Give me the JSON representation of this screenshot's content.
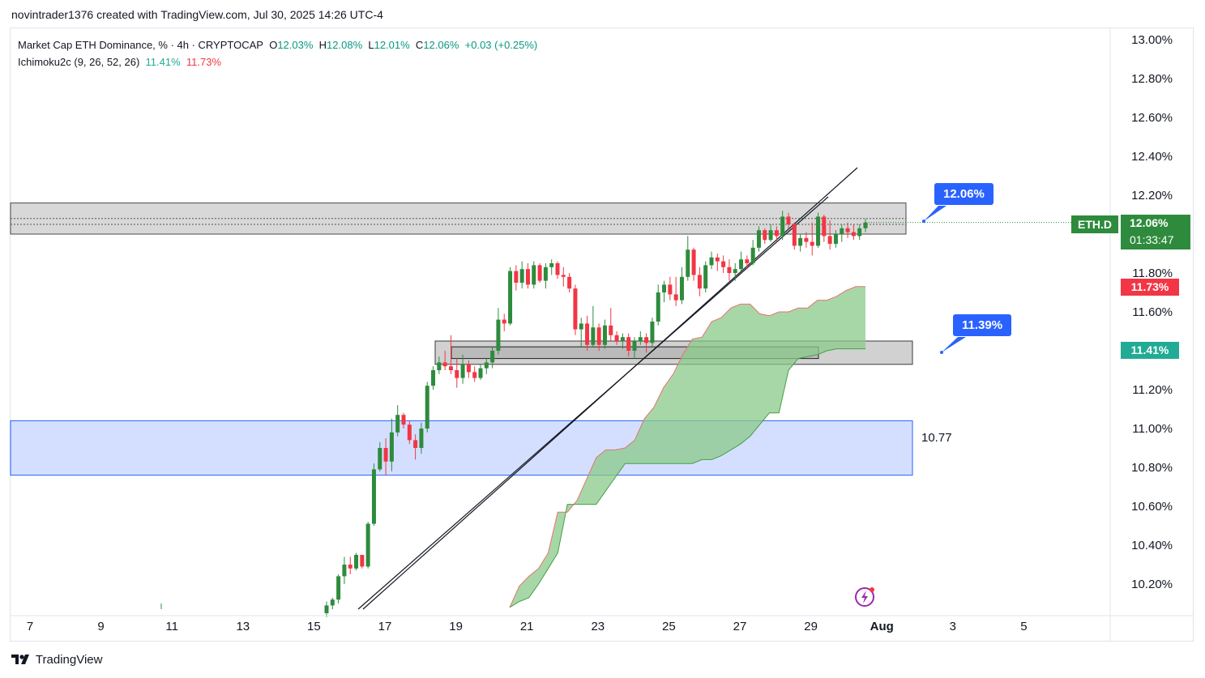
{
  "credit": "novintrader1376 created with TradingView.com, Jul 30, 2025 14:26 UTC-4",
  "legend": {
    "title": "Market Cap ETH Dominance, % · 4h · CRYPTOCAP",
    "o_label": "O",
    "o_value": "12.03%",
    "h_label": "H",
    "h_value": "12.08%",
    "l_label": "L",
    "l_value": "12.01%",
    "c_label": "C",
    "c_value": "12.06%",
    "change": "+0.03 (+0.25%)",
    "indicator": "Ichimoku2c (9, 26, 52, 26)",
    "ind_value1": "11.41%",
    "ind_value2": "11.73%"
  },
  "callouts": {
    "upper": "12.06%",
    "lower": "11.39%"
  },
  "zone_label": "10.77",
  "tags": {
    "symbol": "ETH.D",
    "current_price": "12.06%",
    "countdown": "01:33:47",
    "red_level": "11.73%",
    "green_level": "11.41%"
  },
  "brand": {
    "logo": "tradingview-logo",
    "name": "TradingView"
  },
  "colors": {
    "up": "#089981",
    "down": "#f23645",
    "cloud": "#8bc98a",
    "zone": "#2962ff",
    "callout": "#2962ff"
  },
  "chart_data": {
    "type": "candlestick",
    "title": "Market Cap ETH Dominance",
    "timeframe": "4h",
    "x_ticks": [
      "7",
      "9",
      "11",
      "13",
      "15",
      "17",
      "19",
      "21",
      "23",
      "25",
      "27",
      "29",
      "Aug",
      "3",
      "5"
    ],
    "y_ticks": [
      "10.20%",
      "10.40%",
      "10.60%",
      "10.80%",
      "11.00%",
      "11.20%",
      "11.40%",
      "11.60%",
      "11.80%",
      "12.00%",
      "12.20%",
      "12.40%",
      "12.60%",
      "12.80%",
      "13.00%"
    ],
    "ylim": [
      10.07,
      13.02
    ],
    "xlim_days": [
      6.5,
      12.4
    ],
    "candles": [
      {
        "o": 10.05,
        "h": 10.11,
        "l": 10.03,
        "c": 10.09
      },
      {
        "o": 10.09,
        "h": 10.13,
        "l": 10.07,
        "c": 10.12
      },
      {
        "o": 10.12,
        "h": 10.25,
        "l": 10.1,
        "c": 10.24
      },
      {
        "o": 10.24,
        "h": 10.34,
        "l": 10.2,
        "c": 10.3
      },
      {
        "o": 10.3,
        "h": 10.34,
        "l": 10.25,
        "c": 10.28
      },
      {
        "o": 10.28,
        "h": 10.36,
        "l": 10.27,
        "c": 10.35
      },
      {
        "o": 10.35,
        "h": 10.35,
        "l": 10.28,
        "c": 10.29
      },
      {
        "o": 10.29,
        "h": 10.52,
        "l": 10.28,
        "c": 10.51
      },
      {
        "o": 10.51,
        "h": 10.82,
        "l": 10.5,
        "c": 10.79
      },
      {
        "o": 10.79,
        "h": 10.93,
        "l": 10.78,
        "c": 10.9
      },
      {
        "o": 10.9,
        "h": 10.95,
        "l": 10.76,
        "c": 10.83
      },
      {
        "o": 10.83,
        "h": 11.05,
        "l": 10.78,
        "c": 10.98
      },
      {
        "o": 10.98,
        "h": 11.12,
        "l": 10.96,
        "c": 11.07
      },
      {
        "o": 11.07,
        "h": 11.08,
        "l": 11.0,
        "c": 11.02
      },
      {
        "o": 11.02,
        "h": 11.04,
        "l": 10.92,
        "c": 10.94
      },
      {
        "o": 10.94,
        "h": 10.97,
        "l": 10.84,
        "c": 10.9
      },
      {
        "o": 10.9,
        "h": 11.03,
        "l": 10.87,
        "c": 11.0
      },
      {
        "o": 11.0,
        "h": 11.24,
        "l": 10.98,
        "c": 11.22
      },
      {
        "o": 11.22,
        "h": 11.32,
        "l": 11.2,
        "c": 11.3
      },
      {
        "o": 11.3,
        "h": 11.37,
        "l": 11.28,
        "c": 11.34
      },
      {
        "o": 11.34,
        "h": 11.4,
        "l": 11.3,
        "c": 11.32
      },
      {
        "o": 11.32,
        "h": 11.48,
        "l": 11.28,
        "c": 11.3
      },
      {
        "o": 11.3,
        "h": 11.36,
        "l": 11.21,
        "c": 11.26
      },
      {
        "o": 11.26,
        "h": 11.38,
        "l": 11.23,
        "c": 11.33
      },
      {
        "o": 11.33,
        "h": 11.35,
        "l": 11.26,
        "c": 11.29
      },
      {
        "o": 11.29,
        "h": 11.32,
        "l": 11.24,
        "c": 11.26
      },
      {
        "o": 11.26,
        "h": 11.33,
        "l": 11.25,
        "c": 11.31
      },
      {
        "o": 11.31,
        "h": 11.36,
        "l": 11.28,
        "c": 11.34
      },
      {
        "o": 11.34,
        "h": 11.42,
        "l": 11.31,
        "c": 11.4
      },
      {
        "o": 11.4,
        "h": 11.62,
        "l": 11.38,
        "c": 11.56
      },
      {
        "o": 11.56,
        "h": 11.59,
        "l": 11.5,
        "c": 11.54
      },
      {
        "o": 11.54,
        "h": 11.83,
        "l": 11.53,
        "c": 11.81
      },
      {
        "o": 11.81,
        "h": 11.84,
        "l": 11.71,
        "c": 11.75
      },
      {
        "o": 11.75,
        "h": 11.86,
        "l": 11.72,
        "c": 11.82
      },
      {
        "o": 11.82,
        "h": 11.85,
        "l": 11.72,
        "c": 11.74
      },
      {
        "o": 11.74,
        "h": 11.86,
        "l": 11.72,
        "c": 11.84
      },
      {
        "o": 11.84,
        "h": 11.85,
        "l": 11.75,
        "c": 11.76
      },
      {
        "o": 11.76,
        "h": 11.85,
        "l": 11.72,
        "c": 11.83
      },
      {
        "o": 11.83,
        "h": 11.87,
        "l": 11.79,
        "c": 11.85
      },
      {
        "o": 11.85,
        "h": 11.86,
        "l": 11.77,
        "c": 11.79
      },
      {
        "o": 11.79,
        "h": 11.83,
        "l": 11.73,
        "c": 11.78
      },
      {
        "o": 11.78,
        "h": 11.8,
        "l": 11.7,
        "c": 11.72
      },
      {
        "o": 11.72,
        "h": 11.74,
        "l": 11.48,
        "c": 11.51
      },
      {
        "o": 11.51,
        "h": 11.57,
        "l": 11.42,
        "c": 11.54
      },
      {
        "o": 11.54,
        "h": 11.58,
        "l": 11.4,
        "c": 11.43
      },
      {
        "o": 11.43,
        "h": 11.63,
        "l": 11.42,
        "c": 11.52
      },
      {
        "o": 11.52,
        "h": 11.54,
        "l": 11.4,
        "c": 11.43
      },
      {
        "o": 11.43,
        "h": 11.56,
        "l": 11.41,
        "c": 11.53
      },
      {
        "o": 11.53,
        "h": 11.62,
        "l": 11.45,
        "c": 11.48
      },
      {
        "o": 11.48,
        "h": 11.5,
        "l": 11.43,
        "c": 11.45
      },
      {
        "o": 11.45,
        "h": 11.49,
        "l": 11.41,
        "c": 11.47
      },
      {
        "o": 11.47,
        "h": 11.49,
        "l": 11.37,
        "c": 11.4
      },
      {
        "o": 11.4,
        "h": 11.47,
        "l": 11.36,
        "c": 11.45
      },
      {
        "o": 11.45,
        "h": 11.5,
        "l": 11.43,
        "c": 11.47
      },
      {
        "o": 11.47,
        "h": 11.49,
        "l": 11.39,
        "c": 11.44
      },
      {
        "o": 11.44,
        "h": 11.57,
        "l": 11.42,
        "c": 11.55
      },
      {
        "o": 11.55,
        "h": 11.74,
        "l": 11.53,
        "c": 11.7
      },
      {
        "o": 11.7,
        "h": 11.76,
        "l": 11.65,
        "c": 11.74
      },
      {
        "o": 11.74,
        "h": 11.78,
        "l": 11.66,
        "c": 11.69
      },
      {
        "o": 11.69,
        "h": 11.78,
        "l": 11.63,
        "c": 11.66
      },
      {
        "o": 11.66,
        "h": 11.83,
        "l": 11.64,
        "c": 11.78
      },
      {
        "o": 11.78,
        "h": 11.99,
        "l": 11.76,
        "c": 11.92
      },
      {
        "o": 11.92,
        "h": 11.93,
        "l": 11.76,
        "c": 11.79
      },
      {
        "o": 11.79,
        "h": 11.83,
        "l": 11.68,
        "c": 11.72
      },
      {
        "o": 11.72,
        "h": 11.86,
        "l": 11.7,
        "c": 11.84
      },
      {
        "o": 11.84,
        "h": 11.91,
        "l": 11.82,
        "c": 11.88
      },
      {
        "o": 11.88,
        "h": 11.9,
        "l": 11.81,
        "c": 11.86
      },
      {
        "o": 11.86,
        "h": 11.89,
        "l": 11.8,
        "c": 11.83
      },
      {
        "o": 11.83,
        "h": 11.87,
        "l": 11.76,
        "c": 11.8
      },
      {
        "o": 11.8,
        "h": 11.85,
        "l": 11.76,
        "c": 11.82
      },
      {
        "o": 11.82,
        "h": 11.91,
        "l": 11.81,
        "c": 11.87
      },
      {
        "o": 11.87,
        "h": 11.89,
        "l": 11.82,
        "c": 11.85
      },
      {
        "o": 11.85,
        "h": 11.97,
        "l": 11.84,
        "c": 11.93
      },
      {
        "o": 11.93,
        "h": 12.04,
        "l": 11.91,
        "c": 12.02
      },
      {
        "o": 12.02,
        "h": 12.03,
        "l": 11.95,
        "c": 11.97
      },
      {
        "o": 11.97,
        "h": 12.05,
        "l": 11.96,
        "c": 12.02
      },
      {
        "o": 12.02,
        "h": 12.04,
        "l": 11.96,
        "c": 11.99
      },
      {
        "o": 11.99,
        "h": 12.12,
        "l": 11.97,
        "c": 12.09
      },
      {
        "o": 12.09,
        "h": 12.11,
        "l": 12.03,
        "c": 12.05
      },
      {
        "o": 12.05,
        "h": 12.06,
        "l": 11.92,
        "c": 11.94
      },
      {
        "o": 11.94,
        "h": 12.0,
        "l": 11.91,
        "c": 11.98
      },
      {
        "o": 11.98,
        "h": 12.01,
        "l": 11.93,
        "c": 11.96
      },
      {
        "o": 11.96,
        "h": 12.06,
        "l": 11.89,
        "c": 11.94
      },
      {
        "o": 11.94,
        "h": 12.11,
        "l": 11.93,
        "c": 12.09
      },
      {
        "o": 12.09,
        "h": 12.1,
        "l": 11.96,
        "c": 11.99
      },
      {
        "o": 11.99,
        "h": 12.07,
        "l": 11.92,
        "c": 11.95
      },
      {
        "o": 11.95,
        "h": 12.02,
        "l": 11.93,
        "c": 12.0
      },
      {
        "o": 12.0,
        "h": 12.05,
        "l": 11.96,
        "c": 12.03
      },
      {
        "o": 12.03,
        "h": 12.06,
        "l": 11.98,
        "c": 12.01
      },
      {
        "o": 12.01,
        "h": 12.05,
        "l": 11.97,
        "c": 11.99
      },
      {
        "o": 11.99,
        "h": 12.05,
        "l": 11.97,
        "c": 12.03
      },
      {
        "o": 12.03,
        "h": 12.08,
        "l": 12.01,
        "c": 12.06
      }
    ],
    "cloud": {
      "span_a": [
        10.08,
        10.19,
        10.24,
        10.28,
        10.36,
        10.57,
        10.57,
        10.63,
        10.74,
        10.85,
        10.89,
        10.89,
        10.9,
        10.94,
        11.05,
        11.11,
        11.21,
        11.28,
        11.38,
        11.46,
        11.47,
        11.55,
        11.57,
        11.62,
        11.64,
        11.64,
        11.59,
        11.58,
        11.6,
        11.6,
        11.62,
        11.62,
        11.66,
        11.66,
        11.68,
        11.71,
        11.73,
        11.73
      ],
      "span_b": [
        10.08,
        10.11,
        10.13,
        10.2,
        10.28,
        10.36,
        10.61,
        10.61,
        10.61,
        10.61,
        10.68,
        10.75,
        10.82,
        10.82,
        10.82,
        10.82,
        10.82,
        10.82,
        10.82,
        10.82,
        10.84,
        10.84,
        10.86,
        10.89,
        10.92,
        10.96,
        11.02,
        11.08,
        11.08,
        11.3,
        11.36,
        11.37,
        11.38,
        11.4,
        11.41,
        11.41,
        11.41,
        11.41
      ]
    },
    "zones": [
      {
        "type": "resistance",
        "top": 12.16,
        "bottom": 12.0
      },
      {
        "type": "support",
        "top": 11.45,
        "bottom": 11.33
      },
      {
        "type": "demand",
        "top": 11.04,
        "bottom": 10.76,
        "label": "10.77"
      }
    ],
    "grid": false,
    "legend_position": "top-left"
  }
}
